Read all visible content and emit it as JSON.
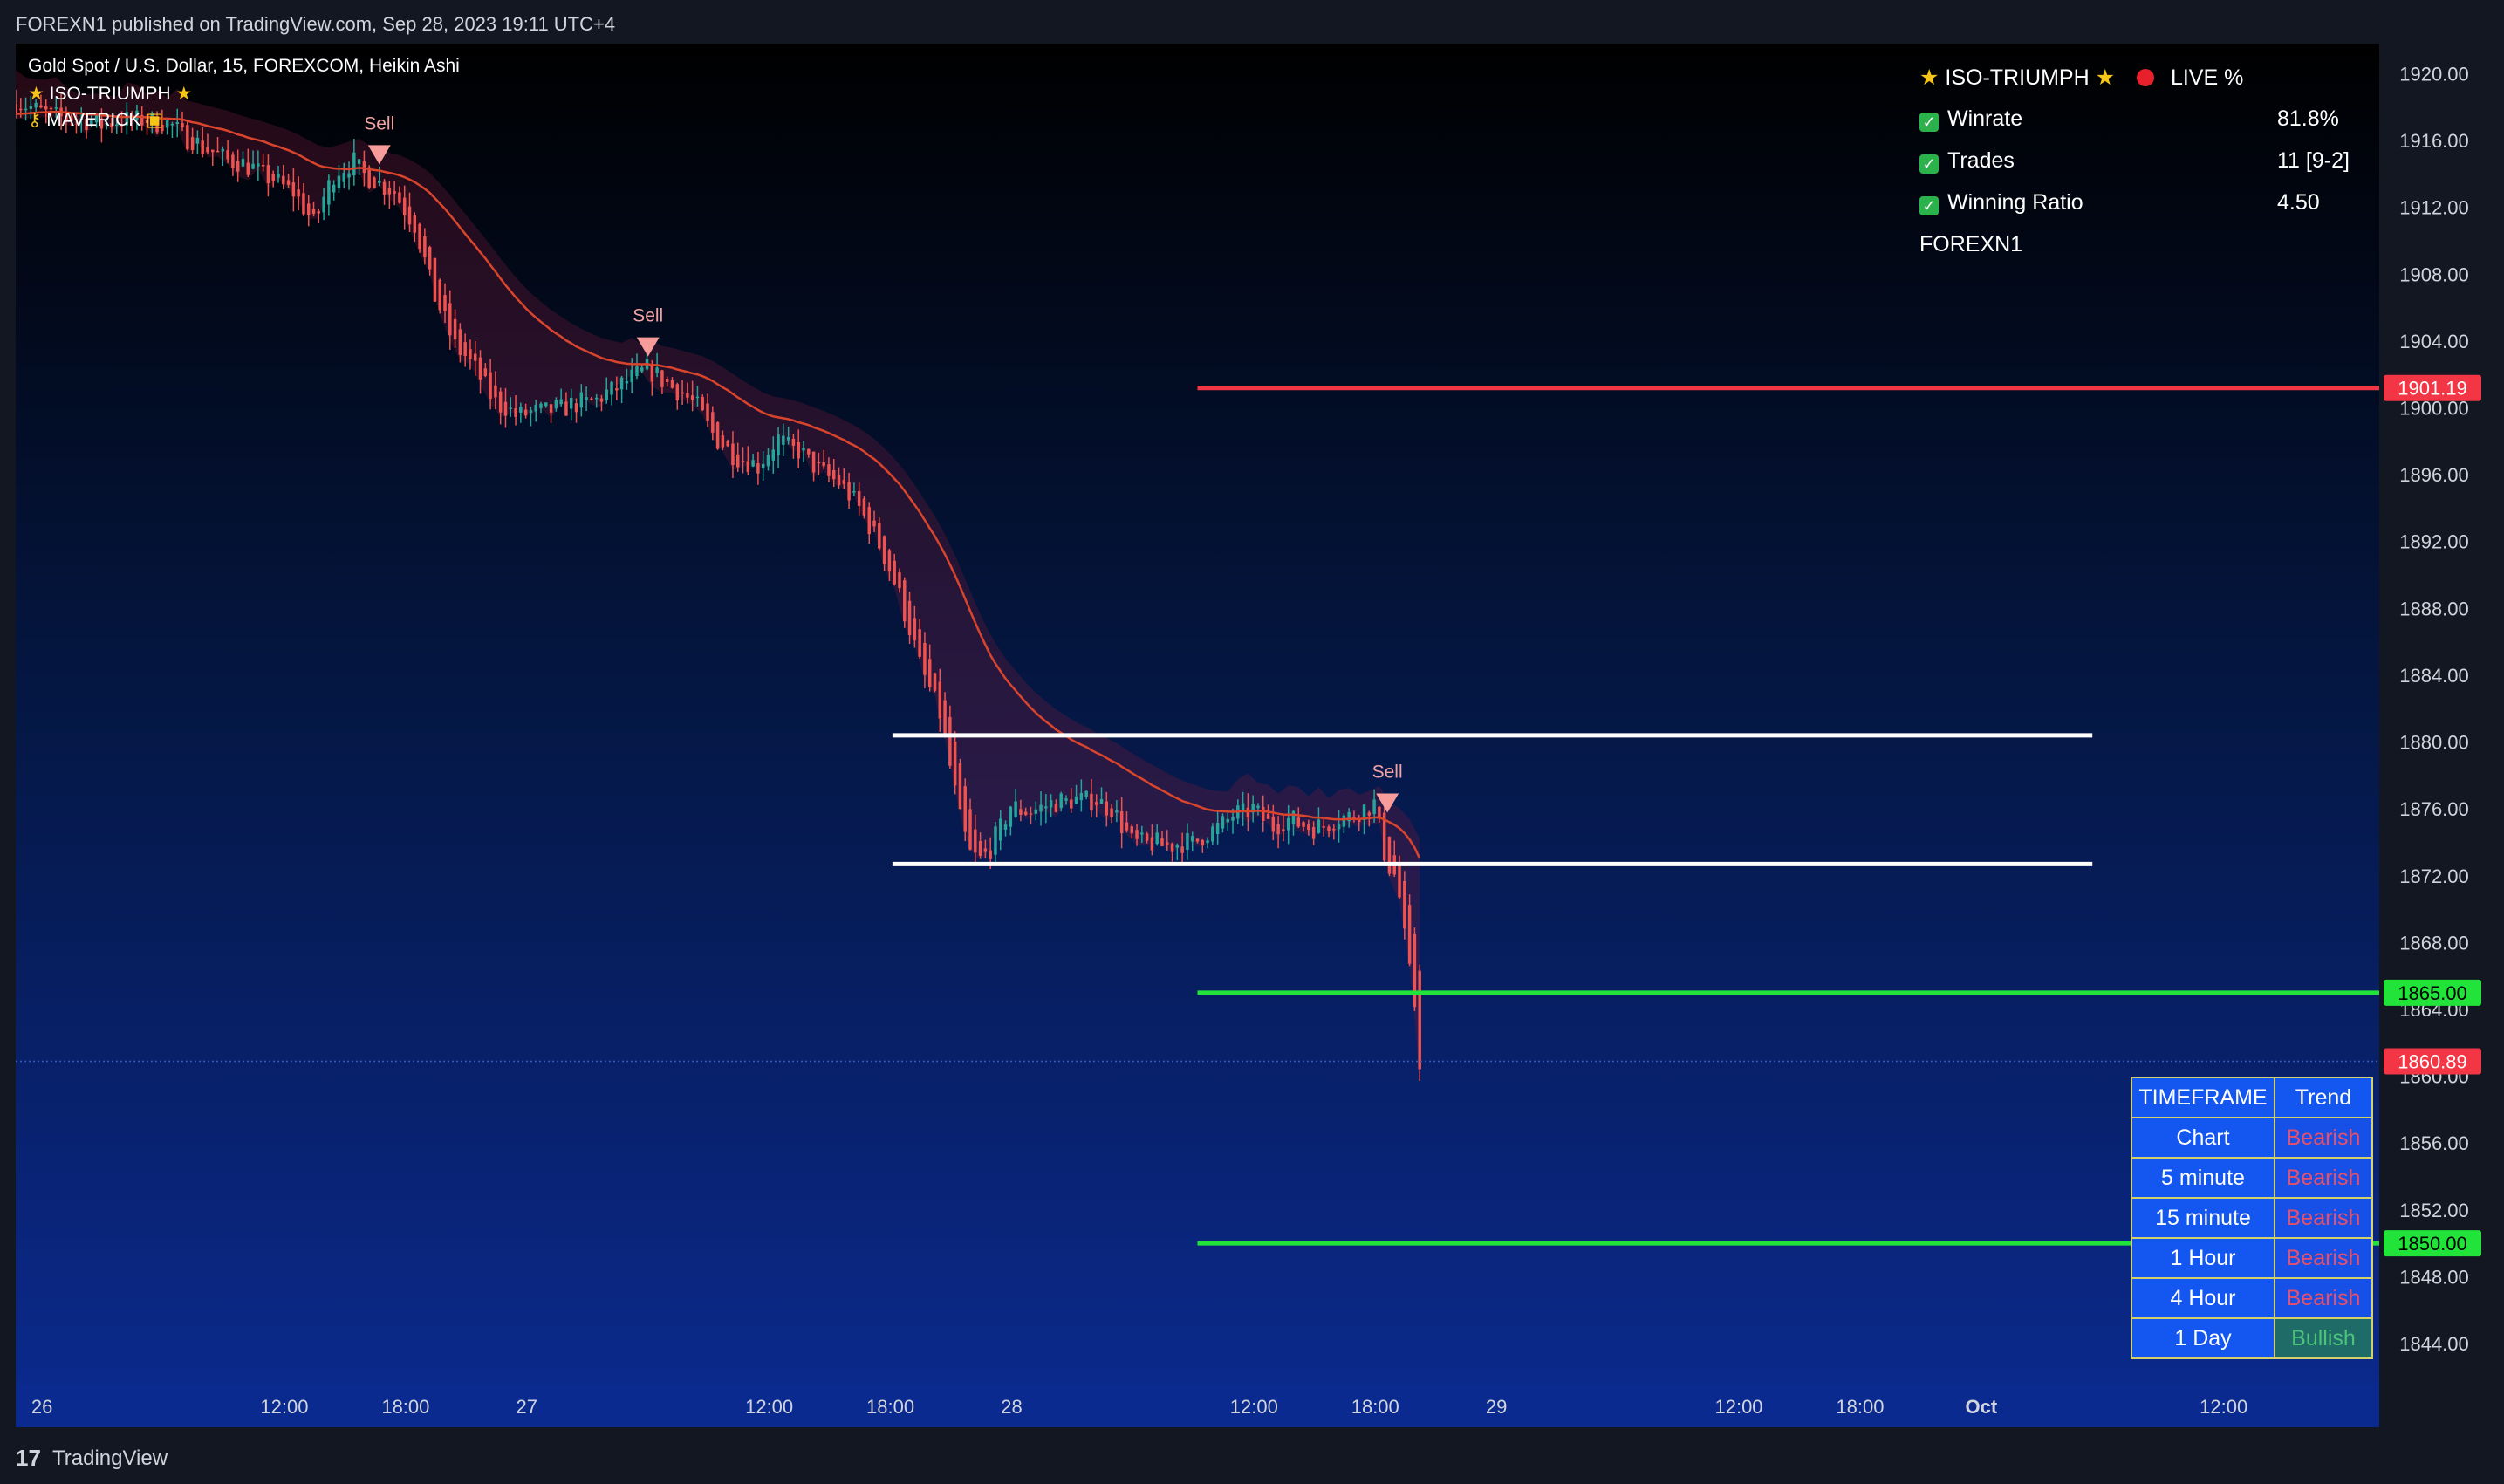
{
  "header": {
    "published": "FOREXN1 published on TradingView.com, Sep 28, 2023 19:11 UTC+4"
  },
  "legend": {
    "symbol": "Gold Spot / U.S. Dollar, 15, FOREXCOM, Heikin Ashi",
    "indicator1": "ISO-TRIUMPH",
    "indicator2": "MAVERICK"
  },
  "stats": {
    "title": "ISO-TRIUMPH",
    "live": "LIVE %",
    "rows": [
      {
        "label": "Winrate",
        "value": "81.8%"
      },
      {
        "label": "Trades",
        "value": "11 [9-2]"
      },
      {
        "label": "Winning Ratio",
        "value": "4.50"
      }
    ],
    "author": "FOREXN1"
  },
  "trend_table": {
    "headers": [
      "TIMEFRAME",
      "Trend"
    ],
    "rows": [
      {
        "tf": "Chart",
        "trend": "Bearish"
      },
      {
        "tf": "5 minute",
        "trend": "Bearish"
      },
      {
        "tf": "15 minute",
        "trend": "Bearish"
      },
      {
        "tf": "1 Hour",
        "trend": "Bearish"
      },
      {
        "tf": "4 Hour",
        "trend": "Bearish"
      },
      {
        "tf": "1 Day",
        "trend": "Bullish"
      }
    ]
  },
  "footer": {
    "brand": "TradingView"
  },
  "colors": {
    "bg_top": "#000000",
    "bg_bottom": "#0b2a8f",
    "bull": "#26a69a",
    "bear": "#ef5350",
    "ema": "#d9452c",
    "red_level": "#f23645",
    "green_level": "#22e33a",
    "white_level": "#ffffff"
  },
  "chart_data": {
    "type": "candlestick",
    "price_axis": {
      "ticks": [
        1920,
        1916,
        1912,
        1908,
        1904,
        1900,
        1896,
        1892,
        1888,
        1884,
        1880,
        1876,
        1872,
        1868,
        1864,
        1860,
        1856,
        1852,
        1848,
        1844
      ],
      "labels": [
        "1920.00",
        "1916.00",
        "1912.00",
        "1908.00",
        "1904.00",
        "1900.00",
        "1896.00",
        "1892.00",
        "1888.00",
        "1884.00",
        "1880.00",
        "1876.00",
        "1872.00",
        "1868.00",
        "1864.00",
        "1860.00",
        "1856.00",
        "1852.00",
        "1848.00",
        "1844.00"
      ],
      "range": [
        1841.6,
        1921.8
      ]
    },
    "time_axis": {
      "labels": [
        "26",
        "12:00",
        "18:00",
        "27",
        "12:00",
        "18:00",
        "28",
        "12:00",
        "18:00",
        "29",
        "12:00",
        "18:00",
        "Oct",
        "12:00"
      ],
      "positions": [
        0,
        12,
        18,
        24,
        36,
        42,
        48,
        60,
        66,
        72,
        84,
        90,
        96,
        108
      ],
      "range": [
        -1.3,
        115.7
      ]
    },
    "current_price": {
      "value": 1860.89,
      "label": "1860.89"
    },
    "levels": [
      {
        "name": "target-red",
        "value": 1901.19,
        "label": "1901.19",
        "from": 57.2,
        "to": 115.7
      },
      {
        "name": "range-top",
        "value": 1880.4,
        "from": 42.1,
        "to": 101.5
      },
      {
        "name": "range-bottom",
        "value": 1872.7,
        "from": 42.1,
        "to": 101.5
      },
      {
        "name": "target-green-1",
        "value": 1865.0,
        "label": "1865.00",
        "from": 57.2,
        "to": 115.7
      },
      {
        "name": "target-green-2",
        "value": 1850.0,
        "label": "1850.00",
        "from": 57.2,
        "to": 115.7
      }
    ],
    "signals": [
      {
        "label": "Sell",
        "t": 16.7,
        "price": 1915.2
      },
      {
        "label": "Sell",
        "t": 30.0,
        "price": 1903.7
      },
      {
        "label": "Sell",
        "t": 66.6,
        "price": 1876.4
      }
    ],
    "path": [
      [
        -1.3,
        1918.2
      ],
      [
        1.0,
        1917.5
      ],
      [
        3.0,
        1917.0
      ],
      [
        5.0,
        1917.3
      ],
      [
        6.5,
        1916.9
      ],
      [
        8.0,
        1915.6
      ],
      [
        9.5,
        1914.8
      ],
      [
        11.0,
        1914.1
      ],
      [
        12.5,
        1913.0
      ],
      [
        13.5,
        1911.2
      ],
      [
        14.5,
        1913.8
      ],
      [
        15.5,
        1914.6
      ],
      [
        16.5,
        1913.6
      ],
      [
        17.5,
        1912.9
      ],
      [
        18.5,
        1911.0
      ],
      [
        19.5,
        1907.0
      ],
      [
        20.5,
        1904.0
      ],
      [
        21.5,
        1902.5
      ],
      [
        22.5,
        1900.5
      ],
      [
        23.5,
        1899.6
      ],
      [
        24.5,
        1899.8
      ],
      [
        26.0,
        1900.1
      ],
      [
        27.5,
        1900.5
      ],
      [
        28.5,
        1901.2
      ],
      [
        30.0,
        1902.4
      ],
      [
        31.0,
        1901.5
      ],
      [
        32.5,
        1900.2
      ],
      [
        33.5,
        1898.2
      ],
      [
        34.5,
        1897.0
      ],
      [
        35.5,
        1896.5
      ],
      [
        36.5,
        1898.0
      ],
      [
        37.5,
        1897.5
      ],
      [
        38.5,
        1896.4
      ],
      [
        39.5,
        1895.6
      ],
      [
        40.5,
        1894.2
      ],
      [
        41.5,
        1892.0
      ],
      [
        42.5,
        1889.0
      ],
      [
        43.5,
        1885.0
      ],
      [
        44.5,
        1882.0
      ],
      [
        45.0,
        1879.0
      ],
      [
        45.5,
        1876.0
      ],
      [
        46.0,
        1873.8
      ],
      [
        46.5,
        1873.2
      ],
      [
        47.0,
        1873.6
      ],
      [
        48.0,
        1876.0
      ],
      [
        49.0,
        1875.8
      ],
      [
        50.0,
        1876.3
      ],
      [
        51.0,
        1876.5
      ],
      [
        52.0,
        1876.6
      ],
      [
        53.0,
        1876.0
      ],
      [
        54.0,
        1874.2
      ],
      [
        55.0,
        1874.0
      ],
      [
        56.0,
        1873.8
      ],
      [
        57.0,
        1874.0
      ],
      [
        58.0,
        1874.6
      ],
      [
        59.0,
        1875.6
      ],
      [
        60.0,
        1876.0
      ],
      [
        61.0,
        1875.0
      ],
      [
        62.0,
        1875.3
      ],
      [
        63.0,
        1874.8
      ],
      [
        64.0,
        1875.2
      ],
      [
        65.0,
        1875.6
      ],
      [
        66.0,
        1876.2
      ],
      [
        66.6,
        1873.2
      ],
      [
        67.1,
        1872.0
      ],
      [
        67.6,
        1868.0
      ],
      [
        68.0,
        1865.0
      ],
      [
        68.3,
        1860.9
      ]
    ]
  }
}
